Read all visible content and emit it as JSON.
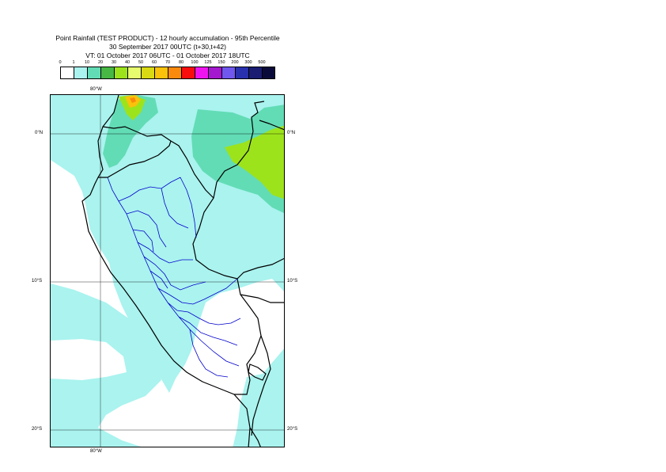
{
  "title": {
    "line1": "Point Rainfall (TEST PRODUCT) - 12 hourly accumulation - 95th Percentile",
    "line2": "30 September 2017 00UTC (t+30,t+42)",
    "line3": "VT: 01 October 2017 06UTC - 01 October 2017 18UTC"
  },
  "legend": {
    "ticks": [
      "0",
      "1",
      "10",
      "20",
      "30",
      "40",
      "50",
      "60",
      "70",
      "80",
      "100",
      "125",
      "150",
      "200",
      "300",
      "500"
    ],
    "colors": [
      "#ffffff",
      "#aaf3ef",
      "#62dcb5",
      "#47b843",
      "#9de31c",
      "#e6fc6e",
      "#d9d914",
      "#fac20a",
      "#fa8a0d",
      "#fa0d0d",
      "#ef14ef",
      "#a419cf",
      "#7057ee",
      "#2931ae",
      "#1a1d72",
      "#0a0a3a"
    ]
  },
  "map": {
    "lon_labels": {
      "top": "80°W",
      "bottom": "80°W"
    },
    "lat_labels": [
      {
        "left": "0°N",
        "right": "0°N"
      },
      {
        "left": "10°S",
        "right": "10°S"
      },
      {
        "left": "20°S",
        "right": "20°S"
      }
    ],
    "shading_colors": {
      "light": "#aaf3ef",
      "medium": "#62dcb5",
      "heavy": "#9de31c",
      "peak": "#fac20a",
      "max": "#fa8a0d",
      "coast": "#000000",
      "regions": "#0000cc"
    }
  }
}
